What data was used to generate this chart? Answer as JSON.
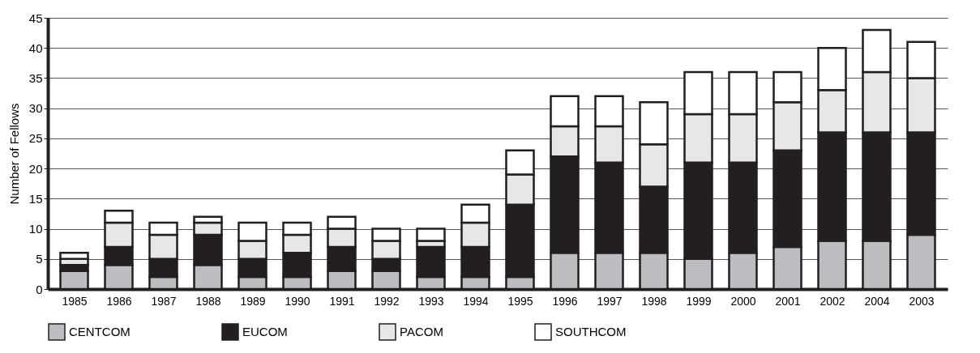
{
  "chart_data": {
    "type": "bar",
    "stacked": true,
    "ylabel": "Number of Fellows",
    "categories": [
      "1985",
      "1986",
      "1987",
      "1988",
      "1989",
      "1990",
      "1991",
      "1992",
      "1993",
      "1994",
      "1995",
      "1996",
      "1997",
      "1998",
      "1999",
      "2000",
      "2001",
      "2002",
      "2004",
      "2003"
    ],
    "series": [
      {
        "name": "CENTCOM",
        "color": "#bcbdc0",
        "values": [
          3,
          4,
          2,
          4,
          2,
          2,
          3,
          3,
          2,
          2,
          2,
          6,
          6,
          6,
          5,
          6,
          7,
          8,
          8,
          9
        ]
      },
      {
        "name": "EUCOM",
        "color": "#231f20",
        "values": [
          1,
          3,
          3,
          5,
          3,
          4,
          4,
          2,
          5,
          5,
          12,
          16,
          15,
          11,
          16,
          15,
          16,
          18,
          18,
          17
        ]
      },
      {
        "name": "PACOM",
        "color": "#e6e7e8",
        "values": [
          1,
          4,
          4,
          2,
          3,
          3,
          3,
          3,
          1,
          4,
          5,
          5,
          6,
          7,
          8,
          8,
          8,
          7,
          10,
          9
        ]
      },
      {
        "name": "SOUTHCOM",
        "color": "#ffffff",
        "values": [
          1,
          2,
          2,
          1,
          3,
          2,
          2,
          2,
          2,
          3,
          4,
          5,
          5,
          7,
          7,
          7,
          5,
          7,
          7,
          6
        ]
      }
    ],
    "ylim": [
      0,
      45
    ],
    "yticks": [
      0,
      5,
      10,
      15,
      20,
      25,
      30,
      35,
      40,
      45
    ],
    "grid": "y",
    "legend": "bottom"
  }
}
